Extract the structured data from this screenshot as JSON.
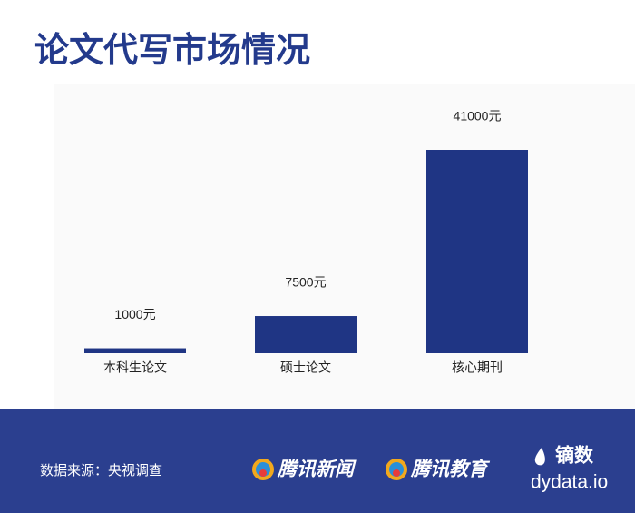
{
  "chart_data": {
    "type": "bar",
    "title": "论文代写市场情况",
    "categories": [
      "本科生论文",
      "硕士论文",
      "核心期刊"
    ],
    "values": [
      1000,
      7500,
      41000
    ],
    "value_labels": [
      "1000元",
      "7500元",
      "41000元"
    ],
    "color": "#1f3584"
  },
  "footer": {
    "source": "数据来源：央视调查",
    "logos": [
      "腾讯新闻",
      "腾讯教育"
    ],
    "brand": "镝数",
    "brand_url": "dydata.io"
  }
}
